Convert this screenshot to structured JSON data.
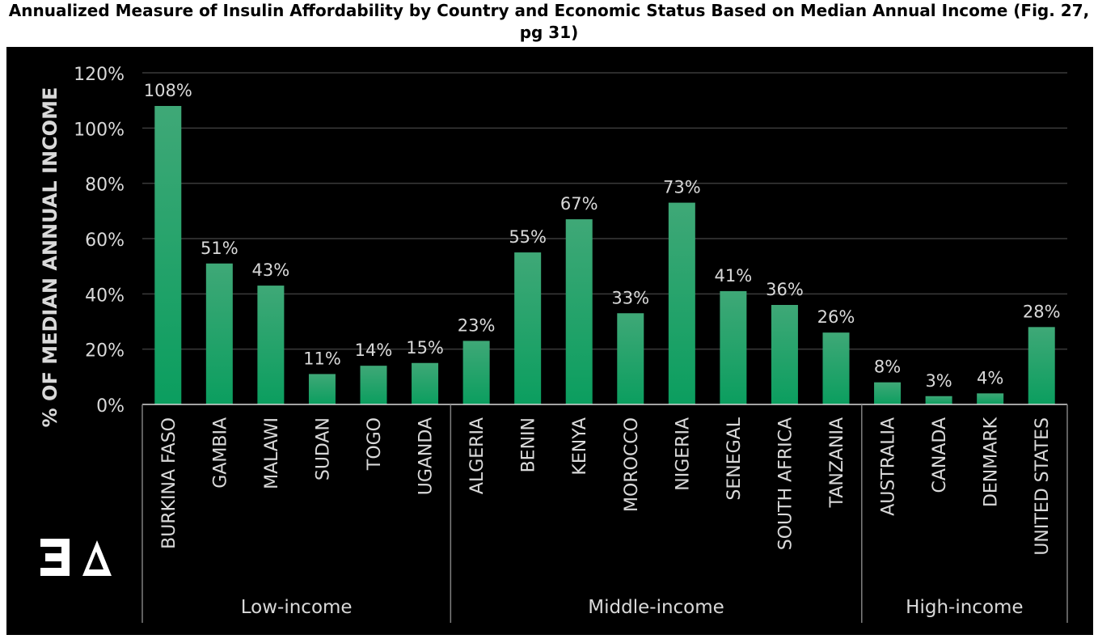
{
  "chart_data": {
    "type": "bar",
    "title": "Annualized Measure of Insulin Affordability by Country and Economic Status Based on Median Annual Income (Fig. 27, pg 31)",
    "ylabel": "% OF MEDIAN ANNUAL INCOME",
    "xlabel": "",
    "ylim": [
      0,
      120
    ],
    "yticks": [
      "0%",
      "20%",
      "40%",
      "60%",
      "80%",
      "100%",
      "120%"
    ],
    "grid": true,
    "categories": [
      "BURKINA FASO",
      "GAMBIA",
      "MALAWI",
      "SUDAN",
      "TOGO",
      "UGANDA",
      "ALGERIA",
      "BENIN",
      "KENYA",
      "MOROCCO",
      "NIGERIA",
      "SENEGAL",
      "SOUTH AFRICA",
      "TANZANIA",
      "AUSTRALIA",
      "CANADA",
      "DENMARK",
      "UNITED STATES"
    ],
    "values": [
      108,
      51,
      43,
      11,
      14,
      15,
      23,
      55,
      67,
      33,
      73,
      41,
      36,
      26,
      8,
      3,
      4,
      28
    ],
    "data_labels": [
      "108%",
      "51%",
      "43%",
      "11%",
      "14%",
      "15%",
      "23%",
      "55%",
      "67%",
      "33%",
      "73%",
      "41%",
      "36%",
      "26%",
      "8%",
      "3%",
      "4%",
      "28%"
    ],
    "groups": [
      {
        "label": "Low-income",
        "count": 6
      },
      {
        "label": "Middle-income",
        "count": 8
      },
      {
        "label": "High-income",
        "count": 4
      }
    ],
    "colors": {
      "background": "#000000",
      "bar_top": "#3fa877",
      "bar_bottom": "#0b9e5f",
      "text": "#d9d9d9",
      "grid": "#3a3a3a"
    }
  },
  "logo": {
    "text": "EA"
  }
}
